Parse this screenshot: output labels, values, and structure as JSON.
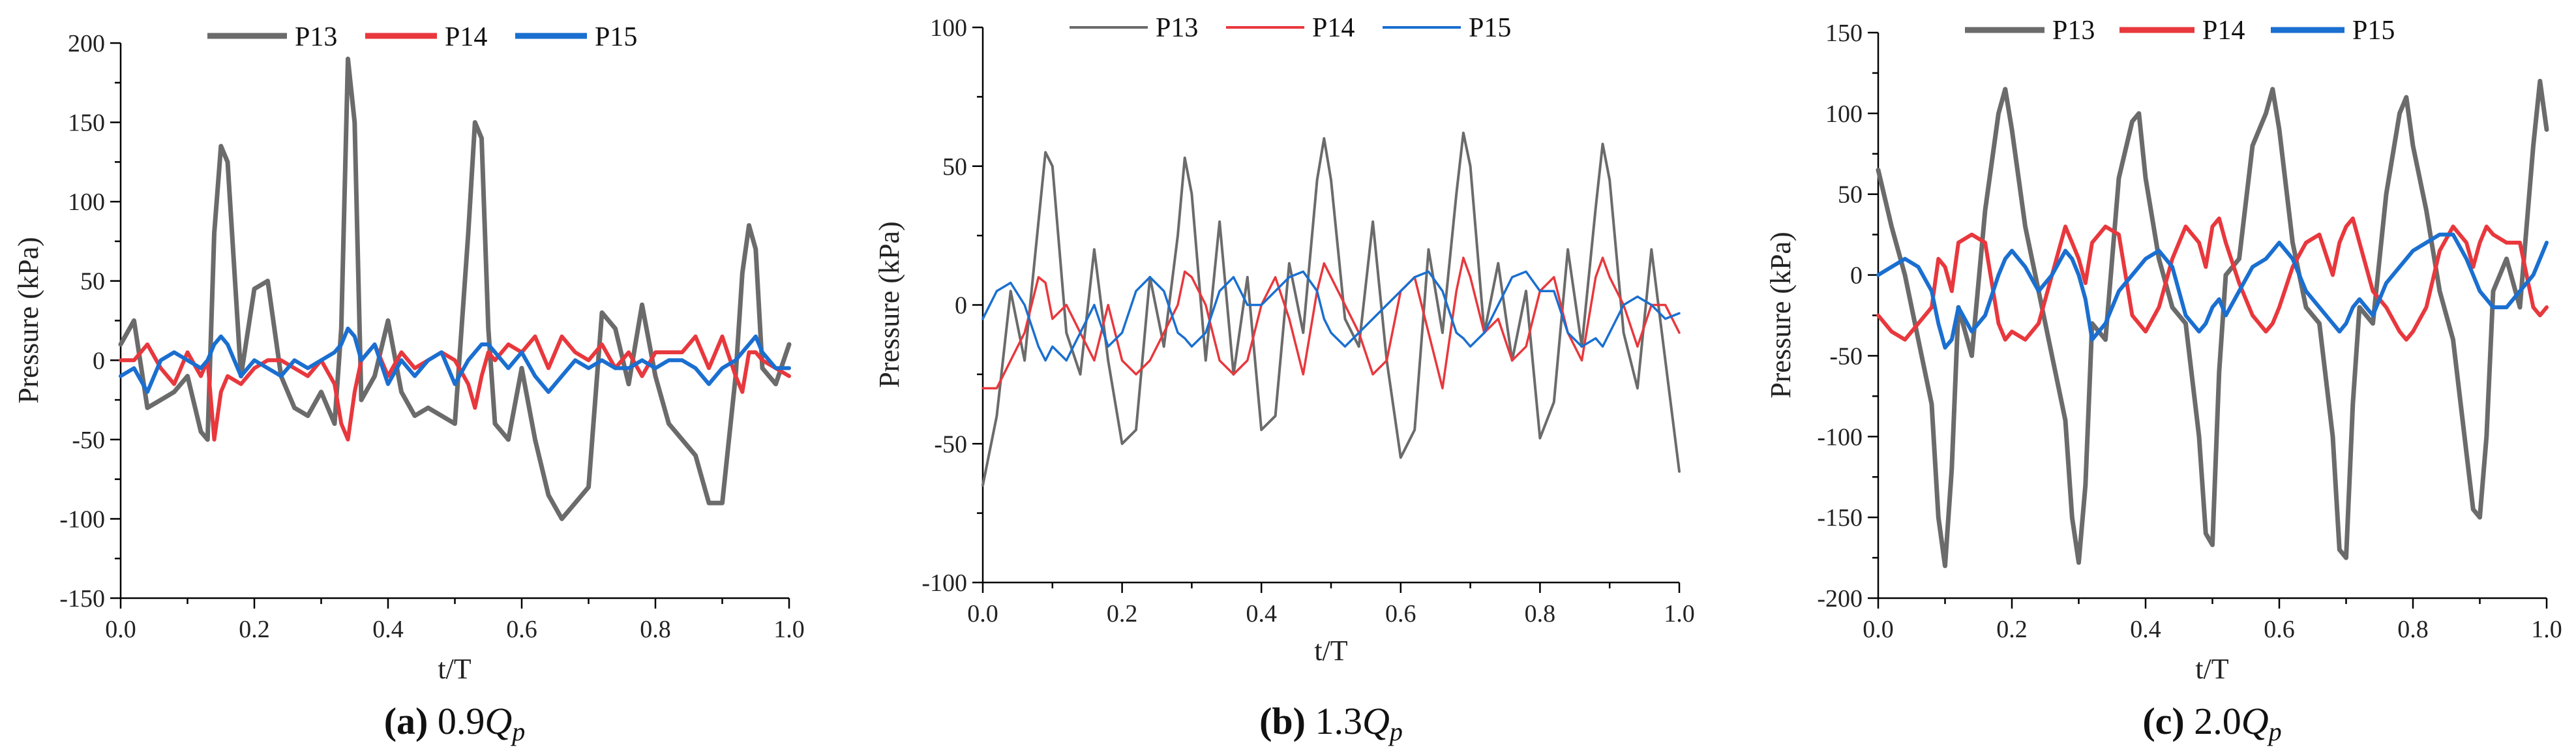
{
  "chart_data": [
    {
      "type": "line",
      "id": "a",
      "caption": {
        "label": "(a)",
        "value": "0.9",
        "symbol": "Q",
        "subscript": "p"
      },
      "xlabel": "t/T",
      "ylabel": "Pressure (kPa)",
      "xlim": [
        0,
        1
      ],
      "ylim": [
        -150,
        200
      ],
      "xticks": [
        0.0,
        0.2,
        0.4,
        0.6,
        0.8,
        1.0
      ],
      "xtick_labels": [
        "0.0",
        "0.2",
        "0.4",
        "0.6",
        "0.8",
        "1.0"
      ],
      "yticks": [
        -150,
        -100,
        -50,
        0,
        50,
        100,
        150,
        200
      ],
      "ytick_labels": [
        "-150",
        "-100",
        "-50",
        "0",
        "50",
        "100",
        "150",
        "200"
      ],
      "legend": [
        "P13",
        "P14",
        "P15"
      ],
      "x": [
        0.0,
        0.02,
        0.04,
        0.06,
        0.08,
        0.1,
        0.12,
        0.13,
        0.14,
        0.15,
        0.16,
        0.18,
        0.2,
        0.22,
        0.24,
        0.26,
        0.28,
        0.3,
        0.32,
        0.33,
        0.34,
        0.35,
        0.36,
        0.38,
        0.4,
        0.42,
        0.44,
        0.46,
        0.48,
        0.5,
        0.52,
        0.53,
        0.54,
        0.55,
        0.56,
        0.58,
        0.6,
        0.62,
        0.64,
        0.66,
        0.68,
        0.7,
        0.72,
        0.74,
        0.76,
        0.78,
        0.8,
        0.82,
        0.84,
        0.86,
        0.88,
        0.9,
        0.92,
        0.93,
        0.94,
        0.95,
        0.96,
        0.98,
        1.0
      ],
      "series": [
        {
          "name": "P13",
          "color": "#6b6b6b",
          "values": [
            10,
            25,
            -30,
            -25,
            -20,
            -10,
            -45,
            -50,
            80,
            135,
            125,
            -10,
            45,
            50,
            -10,
            -30,
            -35,
            -20,
            -40,
            20,
            190,
            150,
            -25,
            -10,
            25,
            -20,
            -35,
            -30,
            -35,
            -40,
            80,
            150,
            140,
            20,
            -40,
            -50,
            -5,
            -50,
            -85,
            -100,
            -90,
            -80,
            30,
            20,
            -15,
            35,
            -10,
            -40,
            -50,
            -60,
            -90,
            -90,
            -10,
            55,
            85,
            70,
            -5,
            -15,
            10
          ]
        },
        {
          "name": "P14",
          "color": "#e8383d",
          "values": [
            0,
            0,
            10,
            -5,
            -15,
            5,
            -10,
            0,
            -50,
            -20,
            -10,
            -15,
            -5,
            0,
            0,
            -5,
            -10,
            0,
            -15,
            -40,
            -50,
            -20,
            0,
            10,
            -10,
            5,
            -5,
            0,
            5,
            0,
            -15,
            -30,
            -10,
            5,
            0,
            10,
            5,
            15,
            -5,
            15,
            5,
            0,
            10,
            -5,
            5,
            -10,
            5,
            5,
            5,
            15,
            -5,
            15,
            -10,
            -20,
            5,
            5,
            0,
            -5,
            -10
          ]
        },
        {
          "name": "P15",
          "color": "#1a6fd0",
          "values": [
            -10,
            -5,
            -20,
            0,
            5,
            0,
            -5,
            0,
            10,
            15,
            10,
            -10,
            0,
            -5,
            -10,
            0,
            -5,
            0,
            5,
            10,
            20,
            15,
            0,
            10,
            -15,
            0,
            -10,
            0,
            5,
            -15,
            0,
            5,
            10,
            10,
            5,
            -5,
            5,
            -10,
            -20,
            -10,
            0,
            -5,
            0,
            -5,
            -5,
            0,
            -5,
            0,
            0,
            -5,
            -15,
            -5,
            0,
            5,
            10,
            15,
            5,
            -5,
            -5
          ]
        }
      ]
    },
    {
      "type": "line",
      "id": "b",
      "caption": {
        "label": "(b)",
        "value": "1.3",
        "symbol": "Q",
        "subscript": "p"
      },
      "xlabel": "t/T",
      "ylabel": "Pressure (kPa)",
      "xlim": [
        0,
        1
      ],
      "ylim": [
        -100,
        100
      ],
      "xticks": [
        0.0,
        0.2,
        0.4,
        0.6,
        0.8,
        1.0
      ],
      "xtick_labels": [
        "0.0",
        "0.2",
        "0.4",
        "0.6",
        "0.8",
        "1.0"
      ],
      "yticks": [
        -100,
        -50,
        0,
        50,
        100
      ],
      "ytick_labels": [
        "-100",
        "-50",
        "0",
        "50",
        "100"
      ],
      "legend": [
        "P13",
        "P14",
        "P15"
      ],
      "x": [
        0.0,
        0.02,
        0.04,
        0.06,
        0.08,
        0.09,
        0.1,
        0.12,
        0.14,
        0.16,
        0.18,
        0.2,
        0.22,
        0.24,
        0.26,
        0.28,
        0.29,
        0.3,
        0.32,
        0.34,
        0.36,
        0.38,
        0.4,
        0.42,
        0.44,
        0.46,
        0.48,
        0.49,
        0.5,
        0.52,
        0.54,
        0.56,
        0.58,
        0.6,
        0.62,
        0.64,
        0.66,
        0.68,
        0.69,
        0.7,
        0.72,
        0.74,
        0.76,
        0.78,
        0.8,
        0.82,
        0.84,
        0.86,
        0.88,
        0.89,
        0.9,
        0.92,
        0.94,
        0.96,
        0.98,
        1.0
      ],
      "series": [
        {
          "name": "P13",
          "color": "#6b6b6b",
          "values": [
            -65,
            -40,
            5,
            -20,
            30,
            55,
            50,
            -10,
            -25,
            20,
            -20,
            -50,
            -45,
            10,
            -15,
            25,
            53,
            40,
            -20,
            30,
            -25,
            10,
            -45,
            -40,
            15,
            -10,
            45,
            60,
            45,
            -5,
            -15,
            30,
            -20,
            -55,
            -45,
            20,
            -10,
            40,
            62,
            50,
            -10,
            15,
            -20,
            5,
            -48,
            -35,
            20,
            -15,
            35,
            58,
            45,
            -10,
            -30,
            20,
            -20,
            -60
          ]
        },
        {
          "name": "P14",
          "color": "#e8383d",
          "values": [
            -30,
            -30,
            -20,
            -10,
            10,
            8,
            -5,
            0,
            -10,
            -20,
            0,
            -20,
            -25,
            -20,
            -10,
            0,
            12,
            10,
            0,
            -20,
            -25,
            -20,
            0,
            10,
            -5,
            -25,
            5,
            15,
            10,
            0,
            -10,
            -25,
            -20,
            5,
            10,
            -10,
            -30,
            5,
            17,
            10,
            -10,
            -5,
            -20,
            -15,
            5,
            10,
            -10,
            -20,
            10,
            17,
            10,
            0,
            -15,
            0,
            0,
            -10
          ]
        },
        {
          "name": "P15",
          "color": "#1a6fd0",
          "values": [
            -5,
            5,
            8,
            0,
            -15,
            -20,
            -15,
            -20,
            -10,
            0,
            -15,
            -10,
            5,
            10,
            5,
            -10,
            -12,
            -15,
            -10,
            5,
            10,
            0,
            0,
            5,
            10,
            12,
            5,
            -5,
            -10,
            -15,
            -10,
            -5,
            0,
            5,
            10,
            12,
            5,
            -10,
            -12,
            -15,
            -10,
            0,
            10,
            12,
            5,
            5,
            -10,
            -15,
            -12,
            -15,
            -10,
            0,
            3,
            0,
            -5,
            -3
          ]
        }
      ]
    },
    {
      "type": "line",
      "id": "c",
      "caption": {
        "label": "(c)",
        "value": "2.0",
        "symbol": "Q",
        "subscript": "p"
      },
      "xlabel": "t/T",
      "ylabel": "Pressure (kPa)",
      "xlim": [
        0,
        1
      ],
      "ylim": [
        -200,
        150
      ],
      "xticks": [
        0.0,
        0.2,
        0.4,
        0.6,
        0.8,
        1.0
      ],
      "xtick_labels": [
        "0.0",
        "0.2",
        "0.4",
        "0.6",
        "0.8",
        "1.0"
      ],
      "yticks": [
        -200,
        -150,
        -100,
        -50,
        0,
        50,
        100,
        150
      ],
      "ytick_labels": [
        "-200",
        "-150",
        "-100",
        "-50",
        "0",
        "50",
        "100",
        "150"
      ],
      "legend": [
        "P13",
        "P14",
        "P15"
      ],
      "x": [
        0.0,
        0.02,
        0.04,
        0.06,
        0.08,
        0.09,
        0.1,
        0.11,
        0.12,
        0.14,
        0.16,
        0.18,
        0.19,
        0.2,
        0.22,
        0.24,
        0.26,
        0.28,
        0.29,
        0.3,
        0.31,
        0.32,
        0.34,
        0.36,
        0.38,
        0.39,
        0.4,
        0.42,
        0.44,
        0.46,
        0.48,
        0.49,
        0.5,
        0.51,
        0.52,
        0.54,
        0.56,
        0.58,
        0.59,
        0.6,
        0.62,
        0.64,
        0.66,
        0.68,
        0.69,
        0.7,
        0.71,
        0.72,
        0.74,
        0.76,
        0.78,
        0.79,
        0.8,
        0.82,
        0.84,
        0.86,
        0.88,
        0.89,
        0.9,
        0.91,
        0.92,
        0.94,
        0.96,
        0.98,
        0.99,
        1.0
      ],
      "series": [
        {
          "name": "P13",
          "color": "#6b6b6b",
          "values": [
            65,
            30,
            0,
            -40,
            -80,
            -150,
            -180,
            -120,
            -20,
            -50,
            40,
            100,
            115,
            90,
            30,
            -10,
            -50,
            -90,
            -150,
            -178,
            -130,
            -30,
            -40,
            60,
            95,
            100,
            60,
            10,
            -20,
            -30,
            -100,
            -160,
            -167,
            -60,
            0,
            10,
            80,
            100,
            115,
            90,
            20,
            -20,
            -30,
            -100,
            -170,
            -175,
            -80,
            -20,
            -30,
            50,
            100,
            110,
            80,
            40,
            -10,
            -40,
            -110,
            -145,
            -150,
            -100,
            -10,
            10,
            -20,
            80,
            120,
            90
          ]
        },
        {
          "name": "P14",
          "color": "#e8383d",
          "values": [
            -25,
            -35,
            -40,
            -30,
            -20,
            10,
            5,
            -10,
            20,
            25,
            20,
            -30,
            -40,
            -35,
            -40,
            -30,
            0,
            30,
            20,
            10,
            -5,
            20,
            30,
            25,
            -25,
            -30,
            -35,
            -20,
            10,
            30,
            20,
            5,
            30,
            35,
            20,
            -5,
            -25,
            -35,
            -30,
            -20,
            5,
            20,
            25,
            0,
            20,
            30,
            35,
            20,
            -10,
            -20,
            -35,
            -40,
            -35,
            -20,
            15,
            30,
            20,
            5,
            20,
            30,
            25,
            20,
            20,
            -20,
            -25,
            -20
          ]
        },
        {
          "name": "P15",
          "color": "#1a6fd0",
          "values": [
            0,
            5,
            10,
            5,
            -10,
            -30,
            -45,
            -40,
            -20,
            -35,
            -25,
            0,
            10,
            15,
            5,
            -10,
            0,
            15,
            10,
            0,
            -15,
            -40,
            -30,
            -10,
            0,
            5,
            10,
            15,
            5,
            -25,
            -35,
            -30,
            -20,
            -15,
            -25,
            -10,
            5,
            10,
            15,
            20,
            10,
            -10,
            -20,
            -30,
            -35,
            -30,
            -20,
            -15,
            -25,
            -5,
            5,
            10,
            15,
            20,
            25,
            25,
            10,
            0,
            -10,
            -15,
            -20,
            -20,
            -10,
            0,
            10,
            20
          ]
        }
      ]
    }
  ]
}
